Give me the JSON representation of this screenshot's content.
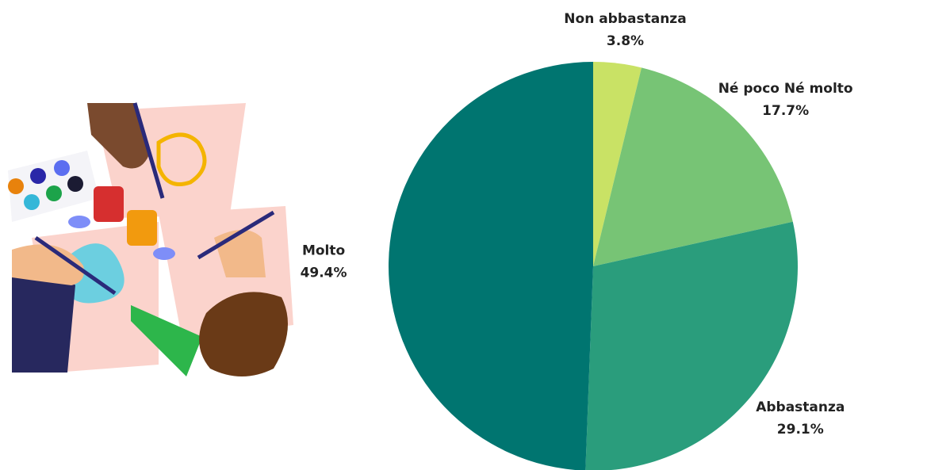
{
  "chart_data": {
    "type": "pie",
    "categories": [
      "Non abbastanza",
      "Né poco Né molto",
      "Abbastanza",
      "Molto"
    ],
    "values": [
      3.8,
      17.7,
      29.1,
      49.4
    ],
    "value_labels": [
      "3.8%",
      "17.7%",
      "29.1%",
      "49.4%"
    ],
    "colors": [
      "#c9e265",
      "#77c475",
      "#2a9d7c",
      "#007570"
    ]
  }
}
